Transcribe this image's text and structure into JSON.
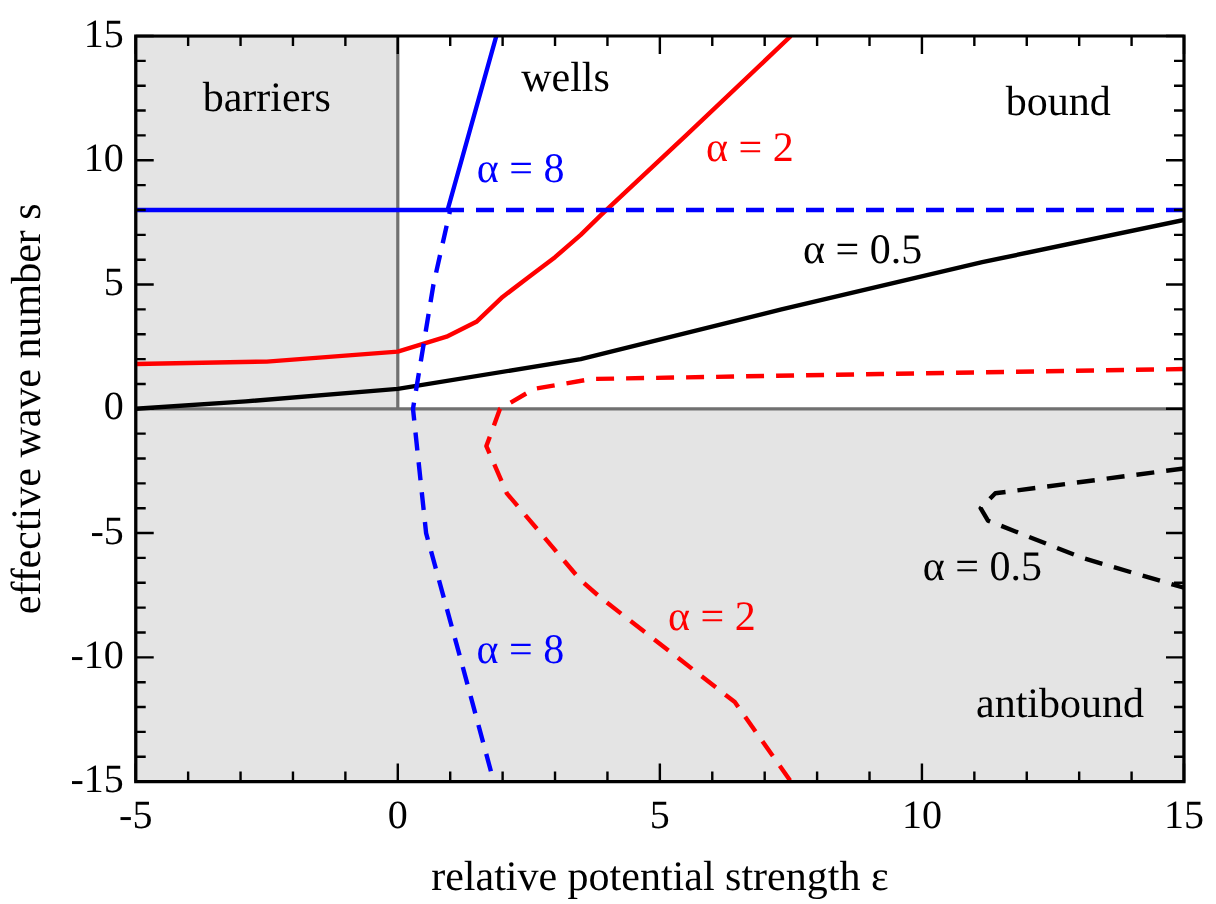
{
  "chart_data": {
    "type": "line",
    "xlabel": "relative potential strength ε",
    "ylabel": "effective wave number s",
    "xlim": [
      -5,
      15
    ],
    "ylim": [
      -15,
      15
    ],
    "xticks": [
      -5,
      {
        "value": -4,
        "label": null
      },
      {
        "value": -3,
        "label": null
      },
      {
        "value": -2,
        "label": null
      },
      {
        "value": -1,
        "label": null
      },
      0,
      {
        "value": 1,
        "label": null
      },
      {
        "value": 2,
        "label": null
      },
      {
        "value": 3,
        "label": null
      },
      {
        "value": 4,
        "label": null
      },
      5,
      {
        "value": 6,
        "label": null
      },
      {
        "value": 7,
        "label": null
      },
      {
        "value": 8,
        "label": null
      },
      {
        "value": 9,
        "label": null
      },
      10,
      {
        "value": 11,
        "label": null
      },
      {
        "value": 12,
        "label": null
      },
      {
        "value": 13,
        "label": null
      },
      {
        "value": 14,
        "label": null
      },
      15
    ],
    "yticks": [
      -15,
      {
        "value": -14,
        "label": null
      },
      {
        "value": -13,
        "label": null
      },
      {
        "value": -12,
        "label": null
      },
      {
        "value": -11,
        "label": null
      },
      -10,
      {
        "value": -9,
        "label": null
      },
      {
        "value": -8,
        "label": null
      },
      {
        "value": -7,
        "label": null
      },
      {
        "value": -6,
        "label": null
      },
      -5,
      {
        "value": -4,
        "label": null
      },
      {
        "value": -3,
        "label": null
      },
      {
        "value": -2,
        "label": null
      },
      {
        "value": -1,
        "label": null
      },
      0,
      {
        "value": 1,
        "label": null
      },
      {
        "value": 2,
        "label": null
      },
      {
        "value": 3,
        "label": null
      },
      {
        "value": 4,
        "label": null
      },
      5,
      {
        "value": 6,
        "label": null
      },
      {
        "value": 7,
        "label": null
      },
      {
        "value": 8,
        "label": null
      },
      {
        "value": 9,
        "label": null
      },
      10,
      {
        "value": 11,
        "label": null
      },
      {
        "value": 12,
        "label": null
      },
      {
        "value": 13,
        "label": null
      },
      {
        "value": 14,
        "label": null
      },
      15
    ],
    "grid": false,
    "legend": false,
    "marker": "none",
    "bands": [
      {
        "axis": "x",
        "from": -5,
        "to": 0,
        "label": "barriers",
        "color": "#e4e4e4"
      },
      {
        "axis": "y",
        "from": -15,
        "to": 0,
        "label": "antibound",
        "color": "#e4e4e4"
      }
    ],
    "series": [
      {
        "name": "α = 8",
        "color": "#0000ff",
        "line_style": "solid",
        "x": [
          -5,
          0.95,
          1.88
        ],
        "values": [
          8,
          8,
          15
        ]
      },
      {
        "name": "α = 8",
        "color": "#0000ff",
        "line_style": "dashed",
        "x": [
          15,
          1.0,
          0.68,
          0.29,
          0.54,
          1.19,
          1.83
        ],
        "values": [
          8,
          8,
          5,
          0,
          -5,
          -10,
          -15
        ]
      },
      {
        "name": "α = 2",
        "color": "#ff0000",
        "line_style": "solid",
        "x": [
          -5,
          -2.5,
          0,
          0.93,
          1.5,
          2,
          2.5,
          3,
          3.49,
          3.88,
          5.5,
          7.5
        ],
        "values": [
          1.8,
          1.9,
          2.3,
          2.9,
          3.5,
          4.5,
          5.3,
          6.1,
          7,
          7.8,
          11,
          15
        ]
      },
      {
        "name": "α = 2",
        "color": "#ff0000",
        "line_style": "dashed",
        "x": [
          15,
          9.2,
          3.7,
          2.6,
          1.95,
          1.69,
          2.08,
          3.49,
          3.87,
          6.43,
          7.5
        ],
        "values": [
          1.6,
          1.4,
          1.2,
          0.8,
          0,
          -1.5,
          -3.4,
          -6.9,
          -7.6,
          -11.8,
          -15
        ]
      },
      {
        "name": "α = 0.5",
        "color": "#000000",
        "line_style": "solid",
        "x": [
          -5,
          -2.9,
          0,
          3.49,
          7.32,
          11.15,
          15
        ],
        "values": [
          0,
          0.3,
          0.8,
          2,
          4,
          5.9,
          7.6
        ]
      },
      {
        "name": "α = 0.5",
        "color": "#000000",
        "line_style": "dashed",
        "x": [
          15,
          11.4,
          11.12,
          11.26,
          13.06,
          15
        ],
        "values": [
          -2.4,
          -3.4,
          -4,
          -4.5,
          -6,
          -7.2
        ]
      }
    ],
    "annotations": [
      "wells",
      "bound"
    ]
  }
}
